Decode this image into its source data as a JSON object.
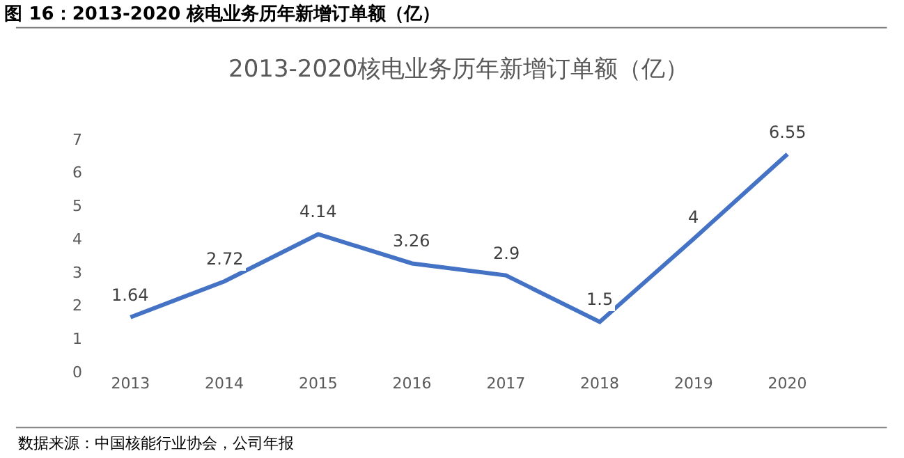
{
  "chart_data": {
    "type": "line",
    "title": "图 16：2013-2020 核电业务历年新增订单额（亿）",
    "subtitle": "2013-2020核电业务历年新增订单额（亿）",
    "categories": [
      "2013",
      "2014",
      "2015",
      "2016",
      "2017",
      "2018",
      "2019",
      "2020"
    ],
    "series": [
      {
        "color": "#4472c4",
        "values": [
          1.64,
          2.72,
          4.14,
          3.26,
          2.9,
          1.5,
          4,
          6.55
        ]
      }
    ],
    "ylim": [
      0,
      7
    ],
    "yticks": [
      0,
      1,
      2,
      3,
      4,
      5,
      6,
      7
    ],
    "grid": false,
    "legend": false,
    "marker": "none",
    "line_style": "solid",
    "data_labels": true,
    "annotations": [
      "数据来源：中国核能行业协会，公司年报"
    ]
  }
}
